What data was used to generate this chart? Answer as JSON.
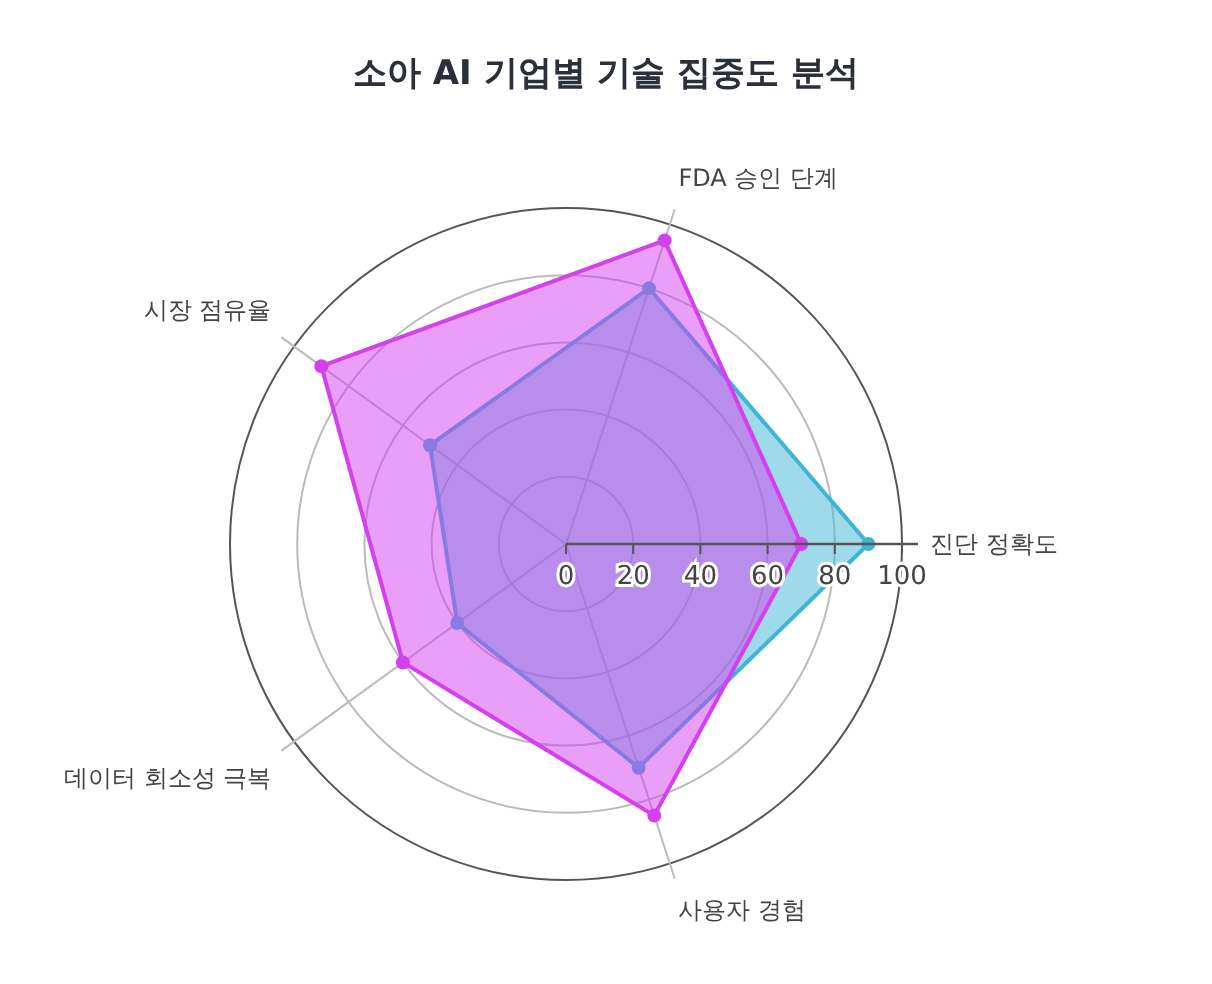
{
  "chart_data": {
    "type": "radar",
    "title": "소아 AI 기업별 기술 집중도 분석",
    "categories": [
      "FDA 승인 단계",
      "진단 정확도",
      "사용자 경험",
      "데이터 회소성 극복",
      "시장 점유율"
    ],
    "series": [
      {
        "color": "#3db5d3",
        "values": [
          80,
          90,
          70,
          40,
          50
        ]
      },
      {
        "color": "#d43ff0",
        "values": [
          95,
          70,
          85,
          60,
          90
        ]
      }
    ],
    "ylim": [
      0,
      100
    ],
    "yticks": [
      0,
      20,
      40,
      60,
      80,
      100
    ],
    "marker": "circle"
  }
}
